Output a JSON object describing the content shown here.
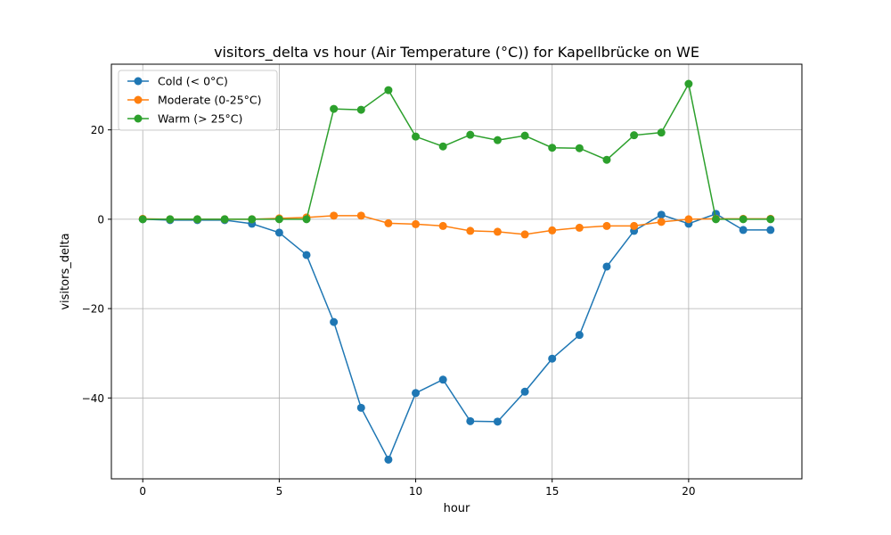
{
  "chart_data": {
    "type": "line",
    "title": "visitors_delta vs hour (Air Temperature (°C)) for Kapellbrücke on WE",
    "xlabel": "hour",
    "ylabel": "visitors_delta",
    "xlim": [
      -1.15,
      24.15
    ],
    "ylim": [
      -58.1,
      34.7
    ],
    "xticks": [
      0,
      5,
      10,
      15,
      20
    ],
    "xtick_labels": [
      "0",
      "5",
      "10",
      "15",
      "20"
    ],
    "yticks": [
      20,
      0,
      -20,
      -40
    ],
    "ytick_labels": [
      "20",
      "0",
      "−20",
      "−40"
    ],
    "grid": true,
    "legend_position": "top-left",
    "x": [
      0,
      1,
      2,
      3,
      4,
      5,
      6,
      7,
      8,
      9,
      10,
      11,
      12,
      13,
      14,
      15,
      16,
      17,
      18,
      19,
      20,
      21,
      22,
      23
    ],
    "series": [
      {
        "name": "Cold (< 0°C)",
        "color": "#1f77b4",
        "values": [
          0.0,
          -0.2,
          -0.2,
          -0.2,
          -1.0,
          -3.0,
          -8.0,
          -23.0,
          -42.2,
          -53.8,
          -38.9,
          -35.9,
          -45.2,
          -45.3,
          -38.6,
          -31.2,
          -25.9,
          -10.6,
          -2.6,
          1.0,
          -1.0,
          1.2,
          -2.4,
          -2.4
        ]
      },
      {
        "name": "Moderate (0-25°C)",
        "color": "#ff7f0e",
        "values": [
          0.1,
          0.0,
          0.0,
          0.0,
          0.0,
          0.2,
          0.4,
          0.8,
          0.8,
          -0.9,
          -1.1,
          -1.5,
          -2.6,
          -2.8,
          -3.4,
          -2.5,
          -1.9,
          -1.5,
          -1.5,
          -0.6,
          0.0,
          0.1,
          0.1,
          0.1
        ]
      },
      {
        "name": "Warm (> 25°C)",
        "color": "#2ca02c",
        "values": [
          0.0,
          0.0,
          0.0,
          0.0,
          0.0,
          0.0,
          0.0,
          24.7,
          24.5,
          28.9,
          18.5,
          16.3,
          18.9,
          17.7,
          18.7,
          16.0,
          15.9,
          13.3,
          18.8,
          19.4,
          30.3,
          0.0,
          0.0,
          0.0
        ]
      }
    ]
  }
}
